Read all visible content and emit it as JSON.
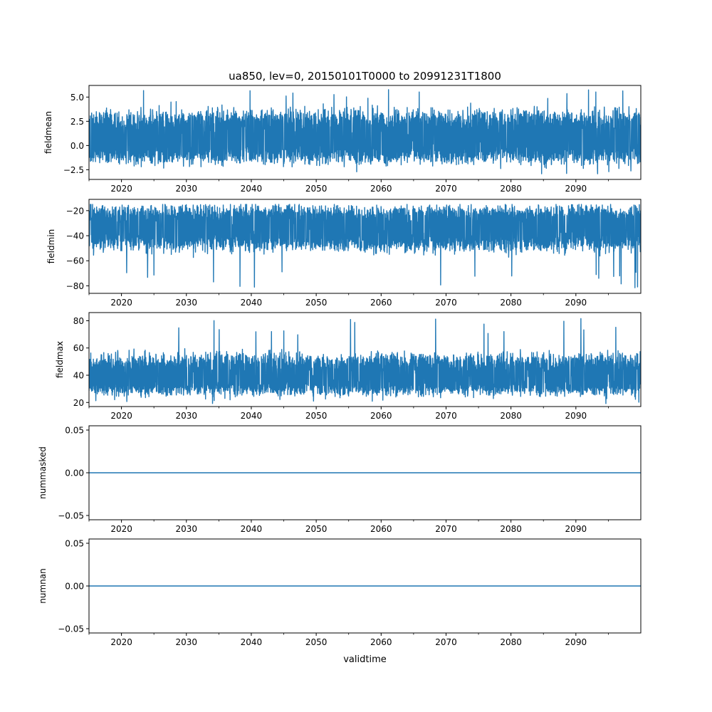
{
  "title": "ua850, lev=0, 20150101T0000 to 20991231T1800",
  "xlabel": "validtime",
  "colors": {
    "series": "#1f77b4",
    "axes": "#000000",
    "background": "#ffffff"
  },
  "chart_data": [
    {
      "type": "line",
      "ylabel": "fieldmean",
      "xlim": [
        2015.0,
        2100.0
      ],
      "ylim": [
        -3.5,
        6.2
      ],
      "yticks": [
        -2.5,
        0.0,
        2.5,
        5.0
      ],
      "ytick_labels": [
        "−2.5",
        "0.0",
        "2.5",
        "5.0"
      ],
      "xticks": [
        2020,
        2030,
        2040,
        2050,
        2060,
        2070,
        2080,
        2090
      ],
      "xtick_labels": [
        "2020",
        "2030",
        "2040",
        "2050",
        "2060",
        "2070",
        "2080",
        "2090"
      ],
      "series": [
        {
          "kind": "noise",
          "baseline": 0.7,
          "low_p5": -1.8,
          "high_p95": 3.6,
          "min": -3.1,
          "max": 5.8
        }
      ]
    },
    {
      "type": "line",
      "ylabel": "fieldmin",
      "xlim": [
        2015.0,
        2100.0
      ],
      "ylim": [
        -86,
        -11
      ],
      "yticks": [
        -80,
        -60,
        -40,
        -20
      ],
      "ytick_labels": [
        "−80",
        "−60",
        "−40",
        "−20"
      ],
      "xticks": [
        2020,
        2030,
        2040,
        2050,
        2060,
        2070,
        2080,
        2090
      ],
      "xtick_labels": [
        "2020",
        "2030",
        "2040",
        "2050",
        "2060",
        "2070",
        "2080",
        "2090"
      ],
      "series": [
        {
          "kind": "noise",
          "baseline": -33,
          "low_p5": -52,
          "high_p95": -17,
          "min": -83,
          "max": -15
        }
      ]
    },
    {
      "type": "line",
      "ylabel": "fieldmax",
      "xlim": [
        2015.0,
        2100.0
      ],
      "ylim": [
        17,
        86
      ],
      "yticks": [
        20,
        40,
        60,
        80
      ],
      "ytick_labels": [
        "20",
        "40",
        "60",
        "80"
      ],
      "xticks": [
        2020,
        2030,
        2040,
        2050,
        2060,
        2070,
        2080,
        2090
      ],
      "xtick_labels": [
        "2020",
        "2030",
        "2040",
        "2050",
        "2060",
        "2070",
        "2080",
        "2090"
      ],
      "series": [
        {
          "kind": "noise",
          "baseline": 38,
          "low_p5": 26,
          "high_p95": 55,
          "min": 19,
          "max": 83
        }
      ]
    },
    {
      "type": "line",
      "ylabel": "nummasked",
      "xlim": [
        2015.0,
        2100.0
      ],
      "ylim": [
        -0.055,
        0.055
      ],
      "yticks": [
        -0.05,
        0.0,
        0.05
      ],
      "ytick_labels": [
        "−0.05",
        "0.00",
        "0.05"
      ],
      "xticks": [
        2020,
        2030,
        2040,
        2050,
        2060,
        2070,
        2080,
        2090
      ],
      "xtick_labels": [
        "2020",
        "2030",
        "2040",
        "2050",
        "2060",
        "2070",
        "2080",
        "2090"
      ],
      "series": [
        {
          "kind": "constant",
          "value": 0.0
        }
      ]
    },
    {
      "type": "line",
      "ylabel": "numnan",
      "xlim": [
        2015.0,
        2100.0
      ],
      "ylim": [
        -0.055,
        0.055
      ],
      "yticks": [
        -0.05,
        0.0,
        0.05
      ],
      "ytick_labels": [
        "−0.05",
        "0.00",
        "0.05"
      ],
      "xticks": [
        2020,
        2030,
        2040,
        2050,
        2060,
        2070,
        2080,
        2090
      ],
      "xtick_labels": [
        "2020",
        "2030",
        "2040",
        "2050",
        "2060",
        "2070",
        "2080",
        "2090"
      ],
      "series": [
        {
          "kind": "constant",
          "value": 0.0
        }
      ]
    }
  ]
}
